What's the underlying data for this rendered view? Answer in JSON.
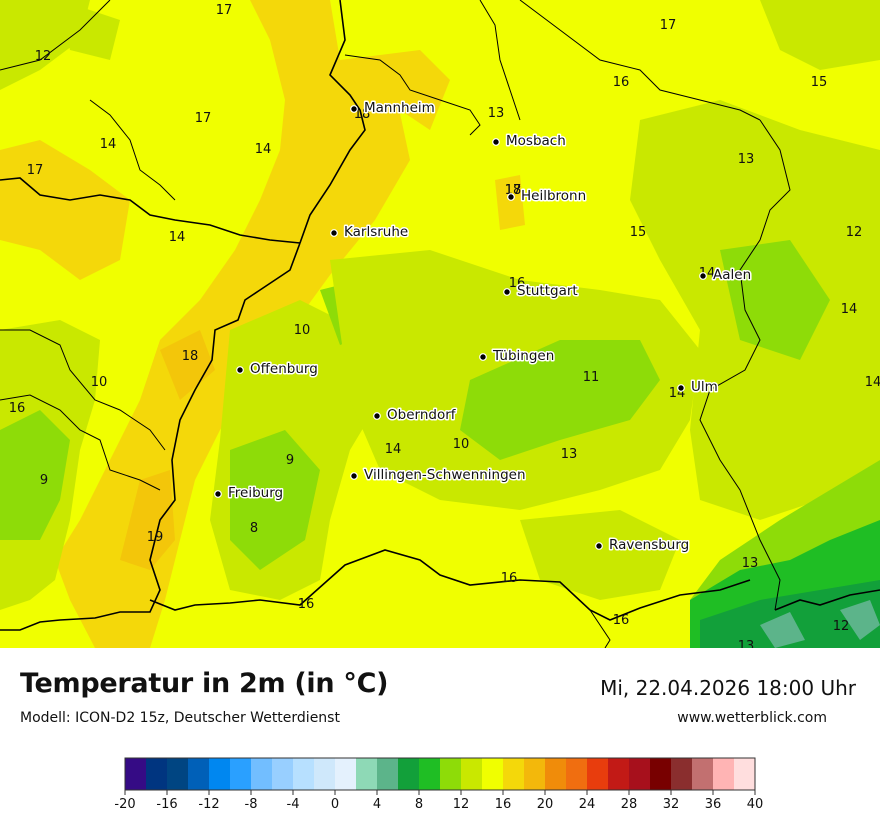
{
  "title": "Temperatur in 2m (in °C)",
  "model": "Modell: ICON-D2 15z, Deutscher Wetterdienst",
  "datetime": "Mi, 22.04.2026 18:00 Uhr",
  "website": "www.wetterblick.com",
  "cities": [
    {
      "name": "Mannheim"
    },
    {
      "name": "Mosbach"
    },
    {
      "name": "Heilbronn"
    },
    {
      "name": "Karlsruhe"
    },
    {
      "name": "Stuttgart"
    },
    {
      "name": "Aalen"
    },
    {
      "name": "Offenburg"
    },
    {
      "name": "Tübingen"
    },
    {
      "name": "Ulm"
    },
    {
      "name": "Oberndorf"
    },
    {
      "name": "Villingen-Schwenningen"
    },
    {
      "name": "Freiburg"
    },
    {
      "name": "Ravensburg"
    }
  ],
  "temperature_labels": [
    "17",
    "12",
    "17",
    "16",
    "15",
    "13",
    "17",
    "14",
    "18",
    "17",
    "18",
    "14",
    "13",
    "17",
    "15",
    "12",
    "14",
    "16",
    "14",
    "10",
    "18",
    "14",
    "10",
    "16",
    "11",
    "14",
    "14",
    "9",
    "14",
    "10",
    "13",
    "9",
    "8",
    "19",
    "16",
    "13",
    "16",
    "16",
    "12",
    "13"
  ],
  "legend": {
    "colors": [
      "#350b85",
      "#003580",
      "#004582",
      "#0060b8",
      "#0087f0",
      "#2aa0ff",
      "#72beff",
      "#98cfff",
      "#b7e0ff",
      "#cfe8fb",
      "#e4f1fd",
      "#8ed9b6",
      "#5cb48a",
      "#12a03a",
      "#1fbe24",
      "#8edc08",
      "#c9e800",
      "#f0ff00",
      "#f4d80a",
      "#f3b80b",
      "#f08c0a",
      "#f06e10",
      "#e83d0d",
      "#c21a16",
      "#a7101c",
      "#780000",
      "#8a2e2e",
      "#c27070",
      "#ffb4b4",
      "#ffdede"
    ],
    "ticks": [
      "-20",
      "-16",
      "-12",
      "-8",
      "-4",
      "0",
      "4",
      "8",
      "12",
      "16",
      "20",
      "24",
      "28",
      "32",
      "36",
      "40"
    ]
  }
}
